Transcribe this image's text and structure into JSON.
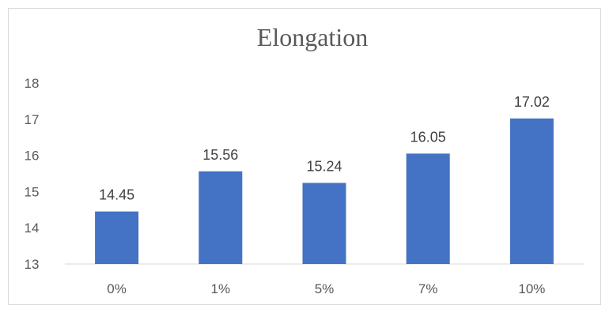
{
  "chart_data": {
    "type": "bar",
    "title": "Elongation",
    "categories": [
      "0%",
      "1%",
      "5%",
      "7%",
      "10%"
    ],
    "values": [
      14.45,
      15.56,
      15.24,
      16.05,
      17.02
    ],
    "data_labels": [
      "14.45",
      "15.56",
      "15.24",
      "16.05",
      "17.02"
    ],
    "ylim": [
      13,
      18
    ],
    "yticks": [
      "13",
      "14",
      "15",
      "16",
      "17",
      "18"
    ],
    "xlabel": "",
    "ylabel": "",
    "grid": false,
    "legend": "none",
    "bar_color": "#4472C4",
    "axis_color": "#D9D9D9"
  }
}
